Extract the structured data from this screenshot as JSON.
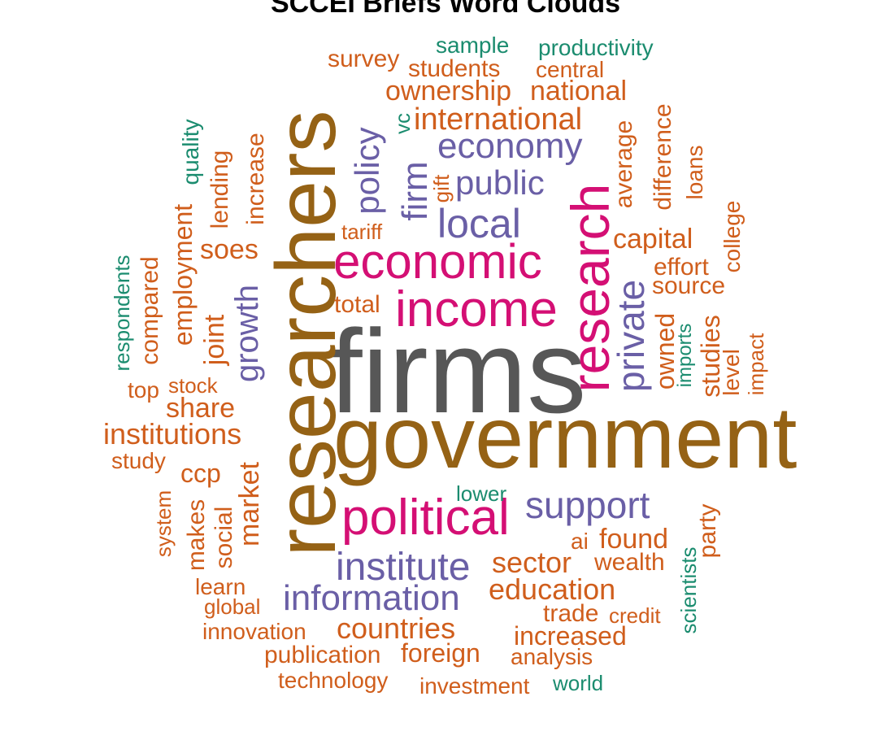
{
  "title": "SCCEI Briefs Word Clouds",
  "colors": {
    "orange": "#D05E1C",
    "green": "#1B8C6F",
    "purple": "#6A5FA6",
    "magenta": "#D40F74",
    "brown": "#956215",
    "gray": "#575757"
  },
  "words": {
    "firms": "firms",
    "government": "government",
    "researchers": "researchers",
    "research": "research",
    "political": "political",
    "income": "income",
    "economic": "economic",
    "local": "local",
    "public": "public",
    "economy": "economy",
    "support": "support",
    "institute": "institute",
    "information": "information",
    "private": "private",
    "policy": "policy",
    "firm": "firm",
    "growth": "growth",
    "sample": "sample",
    "productivity": "productivity",
    "survey": "survey",
    "students": "students",
    "central": "central",
    "ownership": "ownership",
    "national": "national",
    "vc": "vc",
    "international": "international",
    "quality": "quality",
    "lending": "lending",
    "increase": "increase",
    "gift": "gift",
    "average": "average",
    "difference": "difference",
    "loans": "loans",
    "college": "college",
    "tariff": "tariff",
    "capital": "capital",
    "soes": "soes",
    "effort": "effort",
    "source": "source",
    "respondents": "respondents",
    "compared": "compared",
    "employment": "employment",
    "total": "total",
    "joint": "joint",
    "owned": "owned",
    "imports": "imports",
    "studies": "studies",
    "level": "level",
    "impact": "impact",
    "top": "top",
    "stock": "stock",
    "share": "share",
    "institutions": "institutions",
    "study": "study",
    "ccp": "ccp",
    "market": "market",
    "lower": "lower",
    "system": "system",
    "makes": "makes",
    "social": "social",
    "party": "party",
    "ai": "ai",
    "found": "found",
    "sector": "sector",
    "wealth": "wealth",
    "scientists": "scientists",
    "learn": "learn",
    "education": "education",
    "global": "global",
    "trade": "trade",
    "credit": "credit",
    "innovation": "innovation",
    "countries": "countries",
    "increased": "increased",
    "publication": "publication",
    "foreign": "foreign",
    "analysis": "analysis",
    "technology": "technology",
    "investment": "investment",
    "world": "world"
  }
}
